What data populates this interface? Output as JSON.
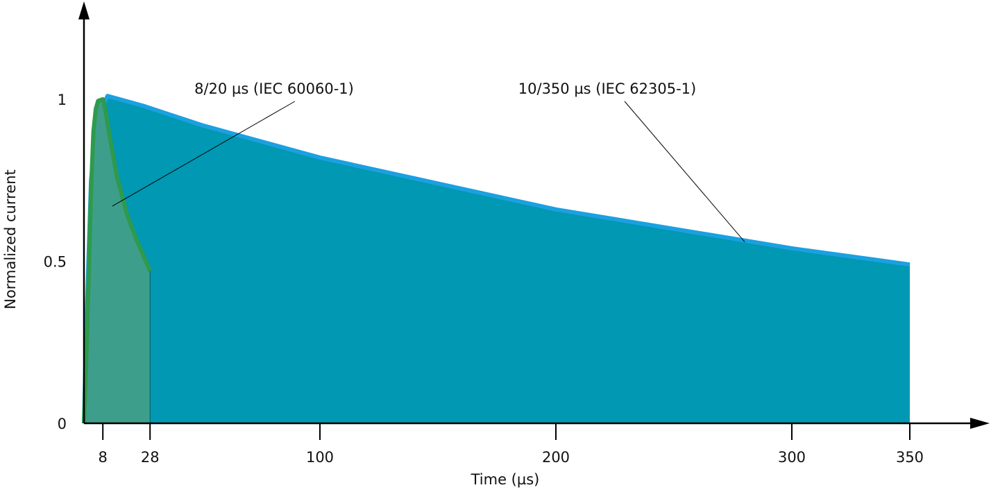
{
  "chart_data": {
    "type": "area",
    "xlabel": "Time (µs)",
    "ylabel": "Normalized current",
    "xlim": [
      0,
      350
    ],
    "ylim": [
      0,
      1
    ],
    "x_ticks": [
      8,
      28,
      100,
      200,
      300,
      350
    ],
    "y_ticks": [
      0,
      0.5,
      1
    ],
    "grid": false,
    "series": [
      {
        "name": "10/350 µs (IEC 62305-1)",
        "fill_color": "#0098b2",
        "line_color": "#1ba0e0",
        "points": [
          [
            0,
            0
          ],
          [
            1,
            0.3
          ],
          [
            3,
            0.75
          ],
          [
            6,
            0.95
          ],
          [
            10,
            1.01
          ],
          [
            25,
            0.98
          ],
          [
            50,
            0.92
          ],
          [
            75,
            0.87
          ],
          [
            100,
            0.82
          ],
          [
            150,
            0.74
          ],
          [
            200,
            0.66
          ],
          [
            250,
            0.6
          ],
          [
            300,
            0.54
          ],
          [
            350,
            0.49
          ]
        ]
      },
      {
        "name": "8/20 µs (IEC 60060-1)",
        "fill_color": "#3e9e8c",
        "line_color": "#2e9a4c",
        "points": [
          [
            0,
            0
          ],
          [
            1,
            0.2
          ],
          [
            2,
            0.45
          ],
          [
            3,
            0.72
          ],
          [
            4,
            0.9
          ],
          [
            5,
            0.97
          ],
          [
            6,
            0.995
          ],
          [
            8,
            1.0
          ],
          [
            9,
            0.97
          ],
          [
            11,
            0.88
          ],
          [
            14,
            0.76
          ],
          [
            18,
            0.65
          ],
          [
            22,
            0.57
          ],
          [
            28,
            0.47
          ]
        ]
      }
    ],
    "annotations": [
      {
        "text": "8/20 µs (IEC 60060-1)",
        "points_to": [
          12,
          0.67
        ]
      },
      {
        "text": "10/350 µs (IEC 62305-1)",
        "points_to": [
          280,
          0.56
        ]
      }
    ]
  }
}
